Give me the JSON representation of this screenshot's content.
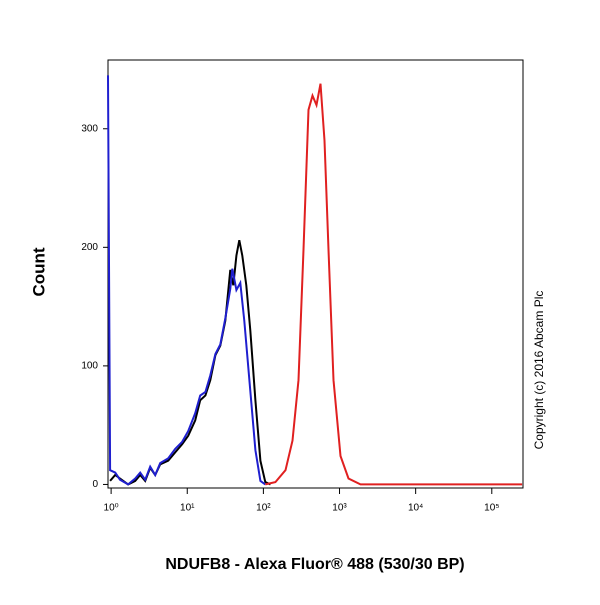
{
  "chart_data": {
    "type": "line",
    "y_label": "Count",
    "x_label": "NDUFB8 - Alexa Fluor® 488 (530/30 BP)",
    "copyright": "Copyright (c) 2016 Abcam Plc",
    "x_scale": "log",
    "xlim": [
      0.91,
      257000
    ],
    "ylim": [
      -3,
      358
    ],
    "xticks": [
      {
        "value": 1,
        "label": "10⁰"
      },
      {
        "value": 10,
        "label": "10¹"
      },
      {
        "value": 100,
        "label": "10²"
      },
      {
        "value": 1000,
        "label": "10³"
      },
      {
        "value": 10000,
        "label": "10⁴"
      },
      {
        "value": 100000,
        "label": "10⁵"
      }
    ],
    "yticks": [
      0,
      100,
      200,
      300
    ],
    "series": [
      {
        "color": "#000000",
        "x": [
          0.97,
          1.13,
          1.31,
          1.67,
          2.07,
          2.41,
          2.8,
          3.26,
          3.79,
          4.41,
          5.62,
          6.95,
          8.59,
          10.3,
          12.7,
          14.8,
          17.3,
          20.1,
          23.4,
          27.2,
          31.6,
          36.8,
          40.3,
          44.2,
          48.3,
          52.9,
          59.7,
          67.4,
          78.5,
          91.4,
          106,
          124
        ],
        "values": [
          3,
          8,
          5,
          0,
          3,
          8,
          3,
          14,
          8,
          17,
          20,
          27,
          34,
          41,
          54,
          71,
          75,
          88,
          109,
          117,
          138,
          181,
          168,
          193,
          206,
          193,
          168,
          130,
          71,
          20,
          2,
          0
        ]
      },
      {
        "color": "#1f1fcf",
        "x": [
          0.91,
          0.97,
          1.13,
          1.31,
          1.67,
          2.07,
          2.41,
          2.8,
          3.26,
          3.79,
          4.41,
          5.62,
          6.95,
          8.59,
          10.3,
          12.7,
          14.8,
          17.3,
          20.1,
          23.4,
          27.2,
          31.6,
          36.8,
          39.1,
          44.2,
          49.8,
          56.2,
          67.4,
          78.5,
          91.4,
          106
        ],
        "values": [
          345,
          12,
          10,
          4,
          0,
          5,
          10,
          4,
          15,
          8,
          18,
          22,
          30,
          36,
          45,
          60,
          75,
          78,
          92,
          110,
          118,
          140,
          165,
          182,
          164,
          170,
          138,
          79,
          29,
          3,
          0
        ]
      },
      {
        "color": "#e02020",
        "x": [
          106,
          144,
          195,
          241,
          289,
          336,
          391,
          441,
          498,
          562,
          635,
          716,
          834,
          1030,
          1313,
          1888,
          250000
        ],
        "values": [
          0,
          2,
          12,
          37,
          88,
          198,
          316,
          328,
          320,
          338,
          290,
          198,
          88,
          24,
          5,
          0,
          0
        ]
      }
    ]
  }
}
